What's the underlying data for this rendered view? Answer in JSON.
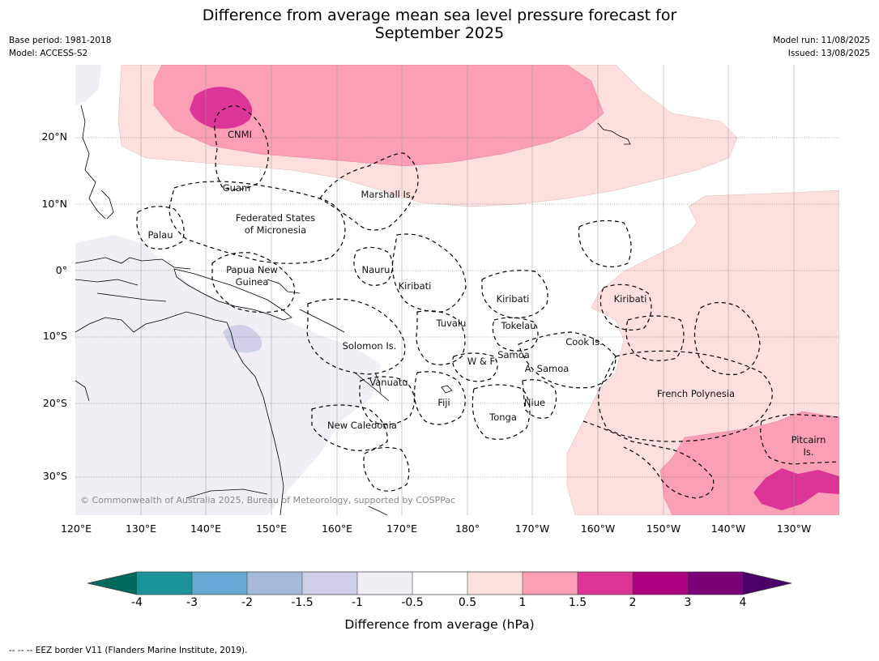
{
  "header": {
    "title_line1": "Difference from average mean sea level pressure forecast for",
    "title_line2": "September 2025",
    "base_period": "Base period: 1981-2018",
    "model": "Model: ACCESS-S2",
    "model_run": "Model run: 11/08/2025",
    "issued": "Issued: 13/08/2025"
  },
  "map": {
    "lat_ticks": [
      "20°N",
      "10°N",
      "0°",
      "10°S",
      "20°S",
      "30°S"
    ],
    "lon_ticks": [
      "120°E",
      "130°E",
      "140°E",
      "150°E",
      "160°E",
      "170°E",
      "180°",
      "170°W",
      "160°W",
      "150°W",
      "140°W",
      "130°W"
    ],
    "copyright": "© Commonwealth of Australia 2025, Bureau of Meteorology, supported by COSPPac",
    "places": {
      "cnmi": "CNMI",
      "guam": "Guam",
      "marshall": "Marshall Is.",
      "fsm1": "Federated States",
      "fsm2": "of Micronesia",
      "palau": "Palau",
      "png1": "Papua New",
      "png2": "Guinea",
      "nauru": "Nauru",
      "kiribati_w": "Kiribati",
      "kiribati_c": "Kiribati",
      "kiribati_e": "Kiribati",
      "tuvalu": "Tuvalu",
      "tokelau": "Tokelau",
      "cook": "Cook Is.",
      "solomon": "Solomon Is.",
      "wf": "W & F",
      "samoa": "Samoa",
      "asamoa": "A. Samoa",
      "vanuatu": "Vanuatu",
      "fiji": "Fiji",
      "niue": "Niue",
      "tonga": "Tonga",
      "newcal": "New Caledonia",
      "frpoly": "French Polynesia",
      "pitcairn1": "Pitcairn",
      "pitcairn2": "Is."
    }
  },
  "legend": {
    "title": "Difference from average (hPa)",
    "ticks": [
      "-4",
      "-3",
      "-2",
      "-1.5",
      "-1",
      "-0.5",
      "0.5",
      "1",
      "1.5",
      "2",
      "3",
      "4"
    ],
    "colors": {
      "lt_m4": "#00695c",
      "b1": "#1a9399",
      "b2": "#67a9d4",
      "b3": "#a6b9d8",
      "b4": "#cdd0e6",
      "b5": "#f2eef5",
      "b6": "#ffffff",
      "b7": "#fde0dd",
      "b8": "#fa9fb5",
      "b9": "#dd3497",
      "b10": "#ae017e",
      "b11": "#7a0177",
      "gt_4": "#49006a"
    }
  },
  "footer": {
    "eez_note": "--  --  -- EEZ border V11 (Flanders Marine Institute, 2019)."
  }
}
